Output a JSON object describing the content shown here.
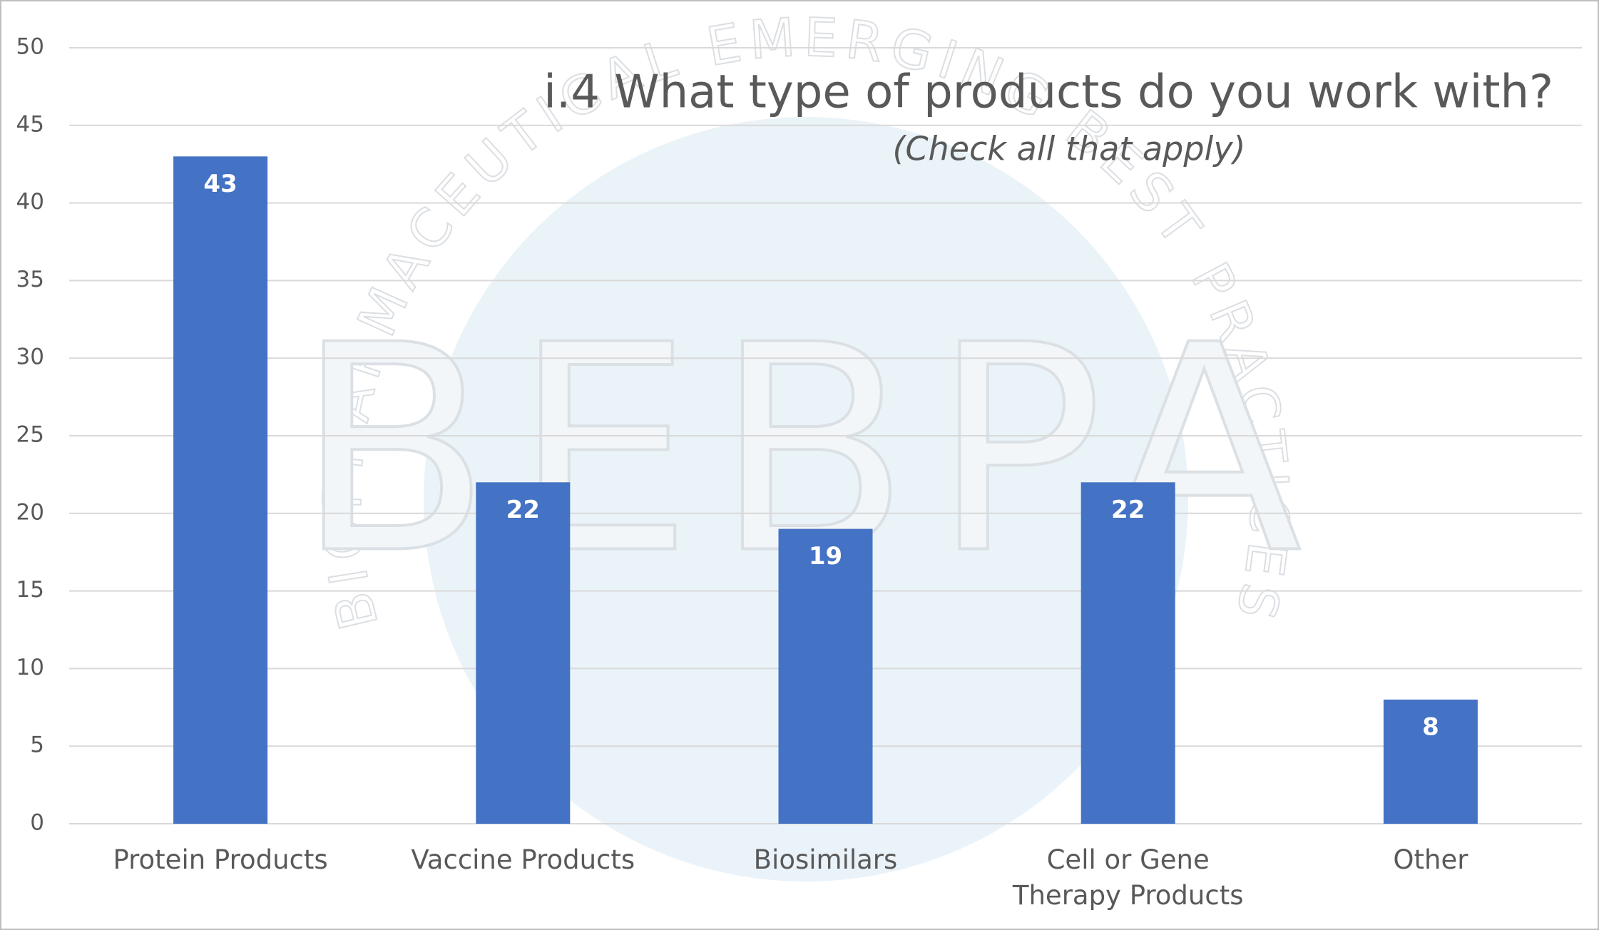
{
  "chart_data": {
    "type": "bar",
    "title": "i.4  What type of products do you work with?",
    "subtitle": "(Check all that apply)",
    "categories": [
      "Protein Products",
      "Vaccine Products",
      "Biosimilars",
      "Cell or Gene Therapy Products",
      "Other"
    ],
    "values": [
      43,
      22,
      19,
      22,
      8
    ],
    "color": "#4472c4",
    "ylim": [
      0,
      50
    ],
    "yticks": [
      0,
      5,
      10,
      15,
      20,
      25,
      30,
      35,
      40,
      45,
      50
    ],
    "grid": true
  },
  "watermark": {
    "logo": "BEBPA",
    "ring": "BIOPHARMACEUTICAL EMERGING BEST PRACTICES ASSOCIATION"
  }
}
